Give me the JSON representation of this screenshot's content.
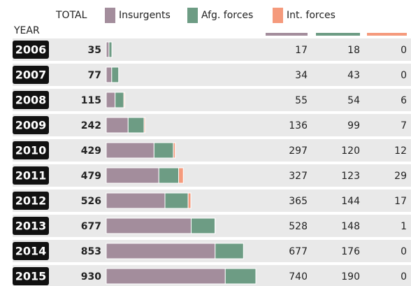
{
  "chart_data": {
    "type": "bar",
    "stacked": true,
    "row_header": "YEAR",
    "total_header": "TOTAL",
    "categories": [
      "2006",
      "2007",
      "2008",
      "2009",
      "2010",
      "2011",
      "2012",
      "2013",
      "2014",
      "2015"
    ],
    "totals": [
      35,
      77,
      115,
      242,
      429,
      479,
      526,
      677,
      853,
      930
    ],
    "series": [
      {
        "name": "Insurgents",
        "color": "#a38d9c",
        "values": [
          17,
          34,
          55,
          136,
          297,
          327,
          365,
          528,
          677,
          740
        ]
      },
      {
        "name": "Afg. forces",
        "color": "#6d9c84",
        "values": [
          18,
          43,
          54,
          99,
          120,
          123,
          144,
          148,
          176,
          190
        ]
      },
      {
        "name": "Int. forces",
        "color": "#f59a7c",
        "values": [
          0,
          0,
          6,
          7,
          12,
          29,
          17,
          1,
          0,
          0
        ]
      }
    ]
  }
}
